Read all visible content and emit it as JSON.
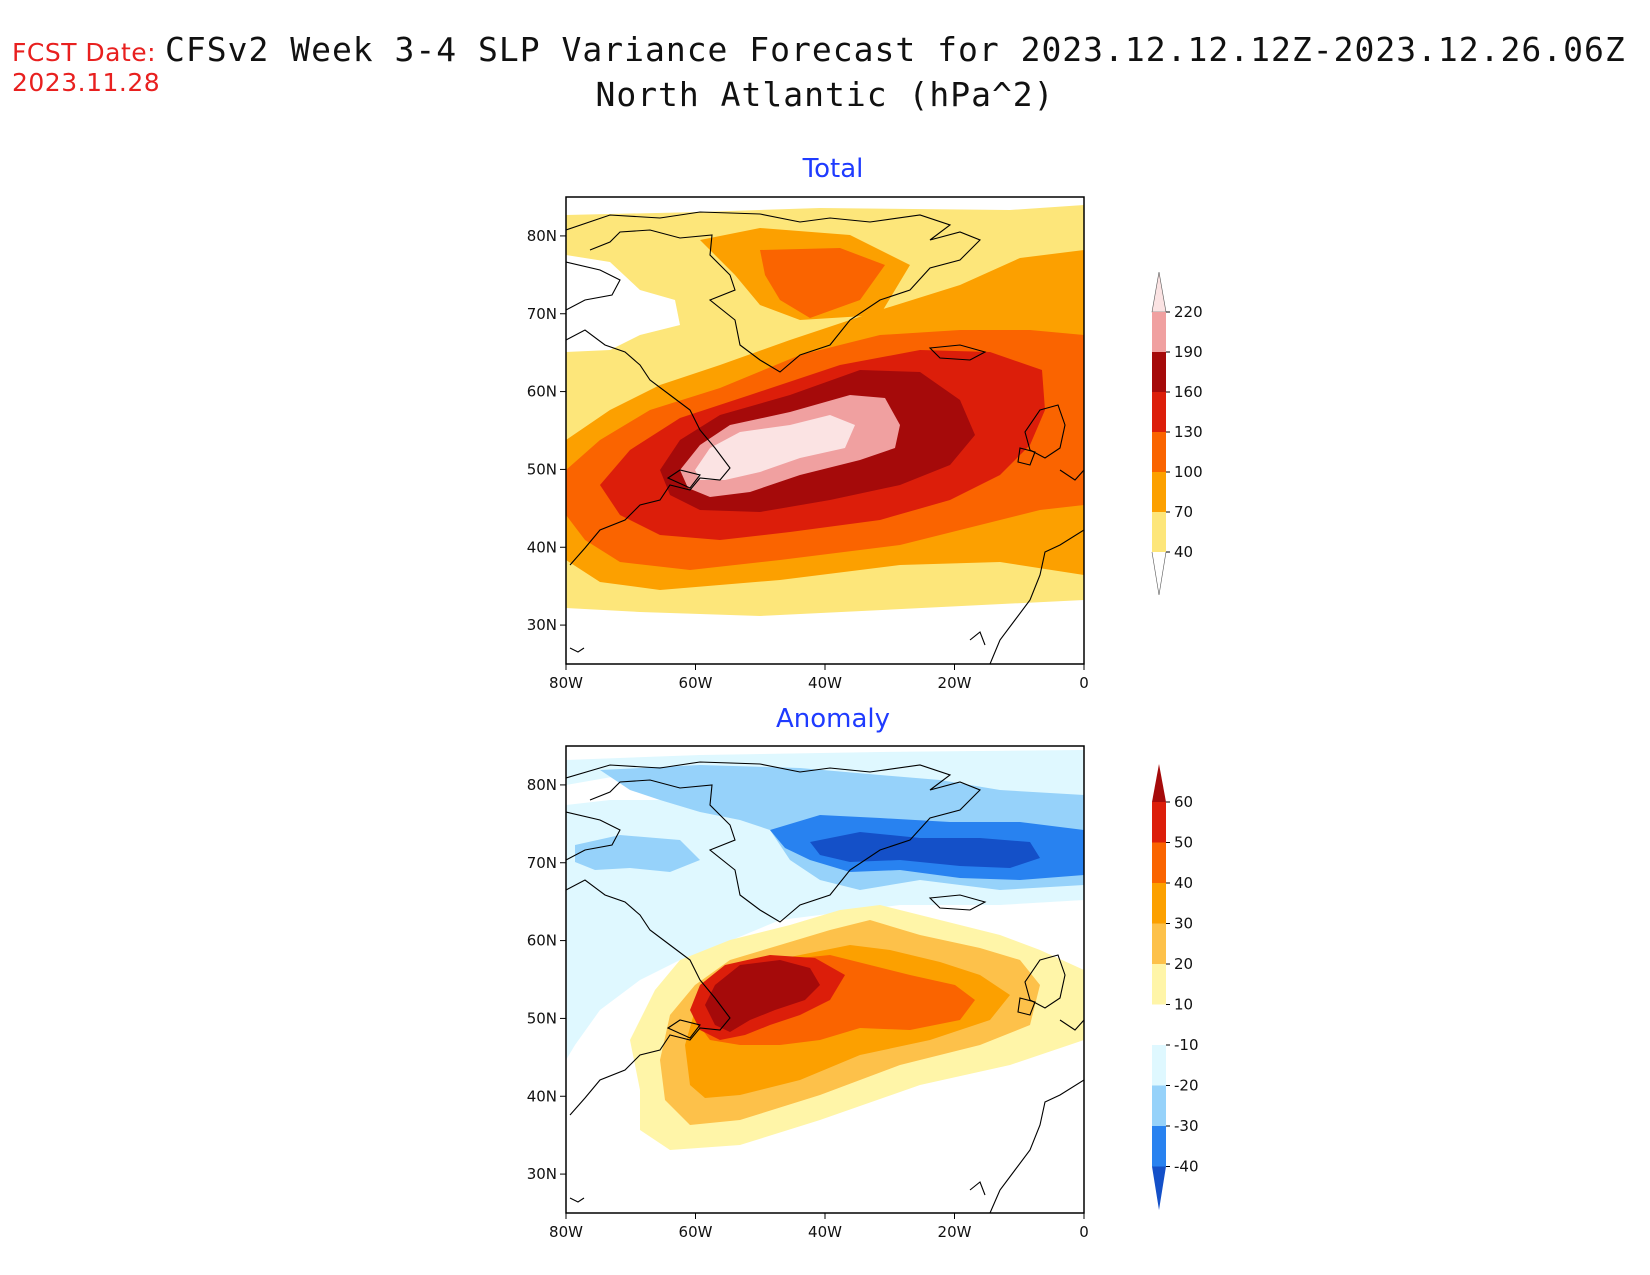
{
  "header": {
    "fcst_label": "FCST Date:",
    "fcst_date": "2023.11.28",
    "title_line1": "CFSv2 Week 3-4 SLP Variance Forecast for 2023.12.12.12Z-2023.12.26.06Z",
    "title_line2": "North Atlantic (hPa^2)"
  },
  "axes": {
    "lon_ticks": [
      "80W",
      "60W",
      "40W",
      "20W",
      "0"
    ],
    "lat_ticks": [
      "80N",
      "70N",
      "60N",
      "50N",
      "40N",
      "30N"
    ],
    "lon_range": [
      -80,
      0
    ],
    "lat_range": [
      25,
      85
    ]
  },
  "panels": [
    {
      "title": "Total",
      "colorbar": {
        "labels": [
          "220",
          "190",
          "160",
          "130",
          "100",
          "70",
          "40"
        ],
        "colors": [
          "#fbe3e3",
          "#f0a0a0",
          "#a50a0a",
          "#dc1e0a",
          "#fa6400",
          "#fca000",
          "#fde67a"
        ]
      }
    },
    {
      "title": "Anomaly",
      "colorbar": {
        "labels": [
          "60",
          "50",
          "40",
          "30",
          "20",
          "10",
          "-10",
          "-20",
          "-30",
          "-40"
        ],
        "colors": [
          "#a50a0a",
          "#dc1e0a",
          "#fa6400",
          "#fca000",
          "#fdc14a",
          "#fff5a8",
          "#ffffff",
          "#dff8ff",
          "#96d2fa",
          "#2882f0",
          "#1450c8"
        ]
      }
    }
  ]
}
